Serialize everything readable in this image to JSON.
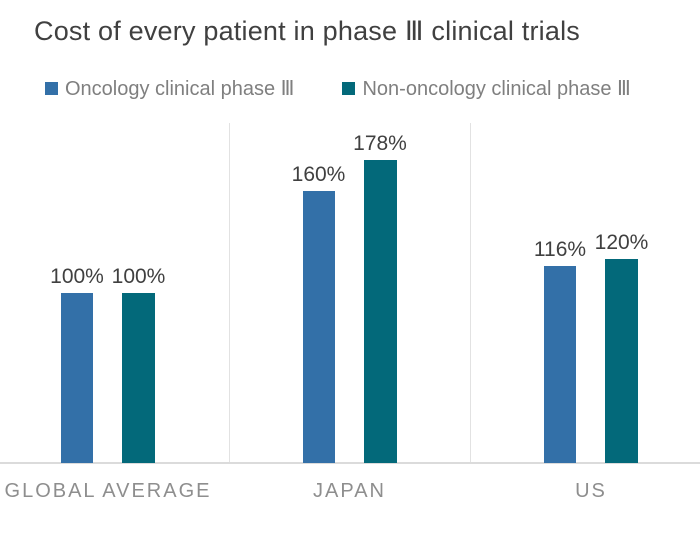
{
  "title": "Cost of every patient in phase Ⅲ clinical trials",
  "colors": {
    "oncology_blue": "#3370A8",
    "non_oncology_teal": "#03697A",
    "title_text": "#404040",
    "axis_text": "#8E8E8E",
    "legend_text": "#7F7F7F",
    "gridline": "#E2E2E2"
  },
  "legend": {
    "items": [
      {
        "label": "Oncology clinical phase Ⅲ",
        "color": "#3370A8"
      },
      {
        "label": "Non-oncology clinical phase Ⅲ",
        "color": "#03697A"
      }
    ]
  },
  "chart_data": {
    "type": "bar",
    "title": "Cost of every patient in phase Ⅲ clinical trials",
    "categories": [
      "GLOBAL AVERAGE",
      "JAPAN",
      "US"
    ],
    "series": [
      {
        "name": "Oncology clinical phase Ⅲ",
        "color": "#3370A8",
        "values": [
          100,
          160,
          116
        ],
        "data_labels": [
          "100%",
          "160%",
          "116%"
        ]
      },
      {
        "name": "Non-oncology clinical phase Ⅲ",
        "color": "#03697A",
        "values": [
          100,
          178,
          120
        ],
        "data_labels": [
          "100%",
          "178%",
          "120%"
        ]
      }
    ],
    "value_suffix": "%",
    "ylim": [
      0,
      200
    ],
    "y_axis_visible": false,
    "grid": "vertical-category-separators",
    "legend_position": "top-left",
    "data_labels_visible": true,
    "xlabel": "",
    "ylabel": ""
  }
}
